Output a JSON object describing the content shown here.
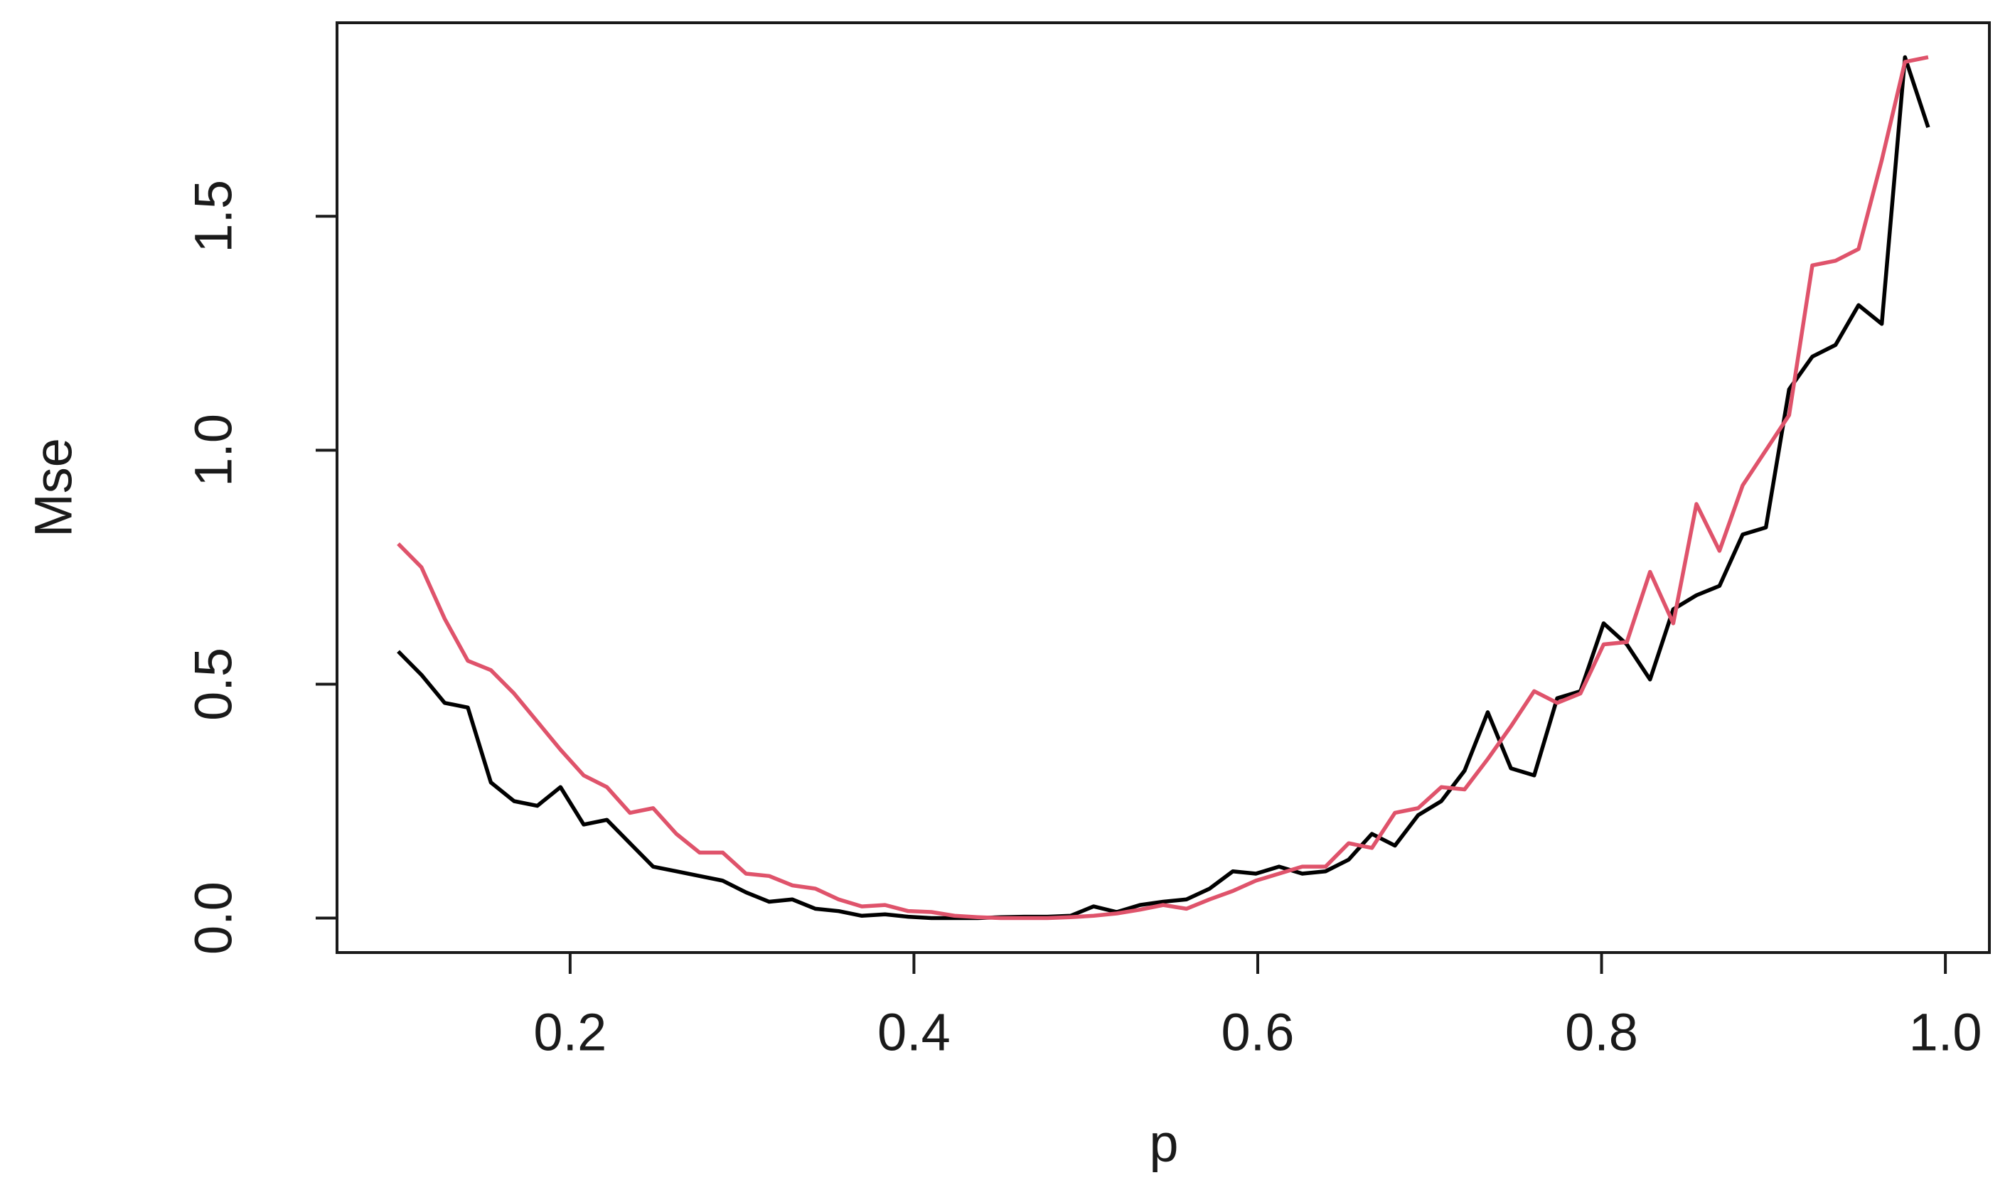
{
  "chart_data": {
    "type": "line",
    "x_label": "p",
    "y_label": "Mse",
    "x": [
      0.1,
      0.1135,
      0.127,
      0.1405,
      0.1539,
      0.1674,
      0.1809,
      0.1944,
      0.2079,
      0.2214,
      0.2348,
      0.2483,
      0.2618,
      0.2753,
      0.2888,
      0.3023,
      0.3158,
      0.3292,
      0.3427,
      0.3562,
      0.3697,
      0.3832,
      0.3967,
      0.4102,
      0.4236,
      0.4371,
      0.4506,
      0.4641,
      0.4776,
      0.4911,
      0.5045,
      0.518,
      0.5315,
      0.545,
      0.5585,
      0.572,
      0.5855,
      0.5989,
      0.6124,
      0.6259,
      0.6394,
      0.6529,
      0.6664,
      0.6798,
      0.6933,
      0.7068,
      0.7203,
      0.7338,
      0.7473,
      0.7608,
      0.7742,
      0.7877,
      0.8012,
      0.8147,
      0.8282,
      0.8417,
      0.8552,
      0.8686,
      0.8821,
      0.8956,
      0.9091,
      0.9226,
      0.9361,
      0.9495,
      0.963,
      0.9765,
      0.99
    ],
    "series": [
      {
        "color": "#000000",
        "values": [
          0.57,
          0.52,
          0.46,
          0.45,
          0.29,
          0.25,
          0.24,
          0.28,
          0.2,
          0.21,
          0.16,
          0.11,
          0.1,
          0.09,
          0.08,
          0.055,
          0.035,
          0.04,
          0.02,
          0.015,
          0.005,
          0.008,
          0.003,
          0,
          0,
          0,
          0.002,
          0.003,
          0.003,
          0.005,
          0.025,
          0.013,
          0.028,
          0.035,
          0.04,
          0.063,
          0.1,
          0.095,
          0.11,
          0.095,
          0.1,
          0.125,
          0.18,
          0.155,
          0.22,
          0.25,
          0.315,
          0.44,
          0.32,
          0.305,
          0.47,
          0.485,
          0.63,
          0.585,
          0.51,
          0.66,
          0.69,
          0.71,
          0.82,
          0.835,
          1.13,
          1.2,
          1.225,
          1.31,
          1.27,
          1.84,
          1.69
        ]
      },
      {
        "color": "#DF536B",
        "values": [
          0.8,
          0.75,
          0.64,
          0.55,
          0.53,
          0.48,
          0.42,
          0.36,
          0.305,
          0.28,
          0.225,
          0.235,
          0.18,
          0.14,
          0.14,
          0.095,
          0.09,
          0.07,
          0.063,
          0.04,
          0.025,
          0.028,
          0.015,
          0.013,
          0.005,
          0.002,
          0,
          0,
          0,
          0.002,
          0.005,
          0.01,
          0.018,
          0.028,
          0.02,
          0.04,
          0.058,
          0.08,
          0.095,
          0.11,
          0.11,
          0.16,
          0.15,
          0.225,
          0.235,
          0.28,
          0.275,
          0.34,
          0.41,
          0.485,
          0.46,
          0.48,
          0.585,
          0.59,
          0.74,
          0.63,
          0.885,
          0.785,
          0.925,
          1.0,
          1.075,
          1.395,
          1.405,
          1.43,
          1.62,
          1.83,
          1.84
        ]
      }
    ],
    "xlim": [
      0.0644,
      1.0256
    ],
    "ylim": [
      -0.0736,
      1.9136
    ],
    "xticks": [
      0.2,
      0.4,
      0.6,
      0.8,
      {
        "value": 1,
        "label": "1.0"
      }
    ],
    "yticks": [
      {
        "value": 0,
        "label": "0.0"
      },
      0.5,
      {
        "value": 1,
        "label": "1.0"
      },
      1.5
    ]
  }
}
